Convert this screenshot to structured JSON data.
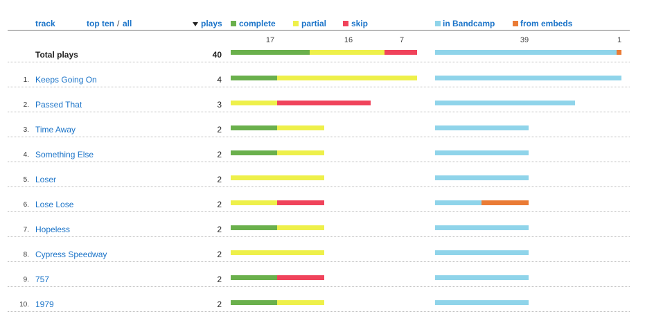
{
  "header": {
    "track_label": "track",
    "top_ten_label": "top ten",
    "slash": "/",
    "all_label": "all",
    "plays_label": "plays",
    "legend": [
      {
        "key": "complete",
        "label": "complete",
        "color": "#6ab04c"
      },
      {
        "key": "partial",
        "label": "partial",
        "color": "#eef04a"
      },
      {
        "key": "skip",
        "label": "skip",
        "color": "#f0435b"
      },
      {
        "key": "bandcamp",
        "label": "in Bandcamp",
        "color": "#8fd4ea"
      },
      {
        "key": "embeds",
        "label": "from embeds",
        "color": "#ea7b35"
      }
    ]
  },
  "total": {
    "label": "Total plays",
    "plays": "40",
    "ticks_left": [
      "17",
      "16",
      "7"
    ],
    "ticks_right": [
      "39",
      "1"
    ]
  },
  "chart_data": {
    "type": "bar",
    "orientation": "horizontal",
    "stacked": true,
    "categories": [
      "Keeps Going On",
      "Passed That",
      "Time Away",
      "Something Else",
      "Loser",
      "Lose Lose",
      "Hopeless",
      "Cypress Speedway",
      "757",
      "1979"
    ],
    "ranks": [
      "1.",
      "2.",
      "3.",
      "4.",
      "5.",
      "6.",
      "7.",
      "8.",
      "9.",
      "10."
    ],
    "plays": [
      "4",
      "3",
      "2",
      "2",
      "2",
      "2",
      "2",
      "2",
      "2",
      "2"
    ],
    "series": [
      {
        "name": "complete",
        "values": [
          1,
          0,
          1,
          1,
          0,
          0,
          1,
          0,
          1,
          1
        ]
      },
      {
        "name": "partial",
        "values": [
          3,
          1,
          1,
          1,
          2,
          1,
          1,
          2,
          0,
          1
        ]
      },
      {
        "name": "skip",
        "values": [
          0,
          2,
          0,
          0,
          0,
          1,
          0,
          0,
          1,
          0
        ]
      },
      {
        "name": "in Bandcamp",
        "values": [
          4,
          3,
          2,
          2,
          2,
          1,
          2,
          2,
          2,
          2
        ]
      },
      {
        "name": "from embeds",
        "values": [
          0,
          0,
          0,
          0,
          0,
          1,
          0,
          0,
          0,
          0
        ]
      }
    ],
    "totals": {
      "complete": 17,
      "partial": 16,
      "skip": 7,
      "in Bandcamp": 39,
      "from embeds": 1,
      "plays": 40
    }
  }
}
